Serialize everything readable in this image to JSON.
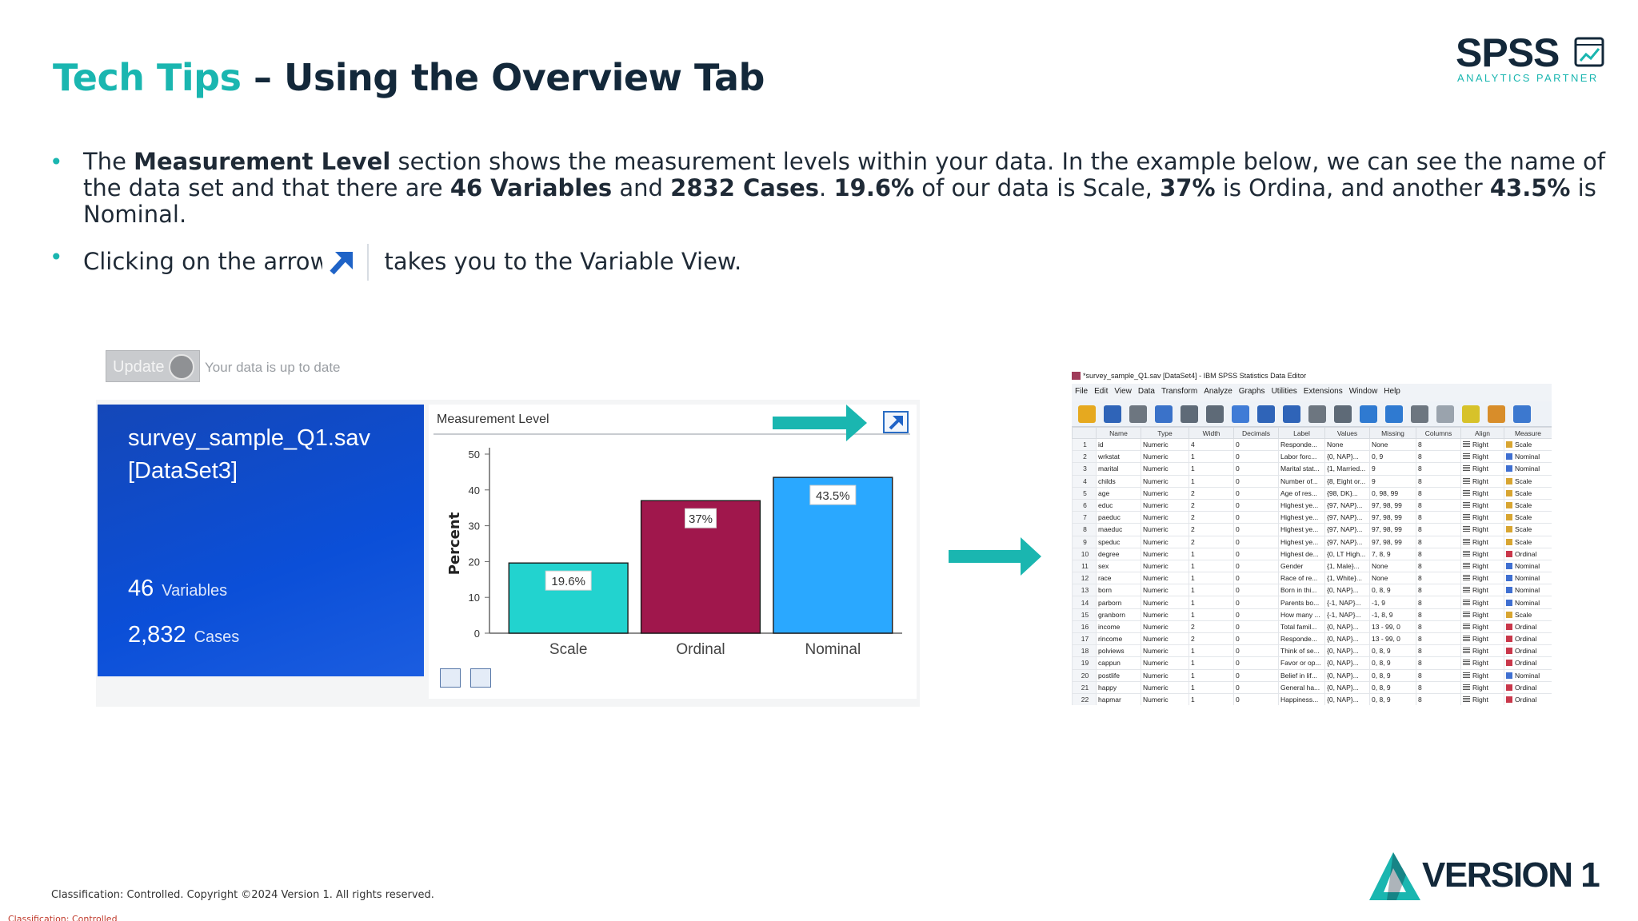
{
  "title": {
    "accent": "Tech Tips",
    "rest": " – Using the Overview Tab"
  },
  "logo": {
    "word": "SPSS",
    "sub": "ANALYTICS PARTNER"
  },
  "bullets": {
    "b1": {
      "t1": "The ",
      "b1": "Measurement Level",
      "t2": " section shows the measurement levels within your data. In the example below, we can see the name of the data set and that there are ",
      "b2": "46 Variables",
      "t3": " and ",
      "b3": "2832 Cases",
      "t4": ". ",
      "b4": "19.6%",
      "t5": " of our data is Scale, ",
      "b5": "37%",
      "t6": " is Ordina, and another ",
      "b6": "43.5%",
      "t7": " is Nominal."
    },
    "b2": {
      "t1": "Clicking on the arrow",
      "t2": " takes you to the Variable View."
    },
    "marker": "•"
  },
  "overview": {
    "update_label": "Update",
    "status": "Your data is up to date",
    "dataset_name": "survey_sample_Q1.sav [DataSet3]",
    "variables": {
      "num": "46",
      "label": "Variables"
    },
    "cases": {
      "num": "2,832",
      "label": "Cases"
    }
  },
  "chart_data": {
    "type": "bar",
    "title": "Measurement Level",
    "categories": [
      "Scale",
      "Ordinal",
      "Nominal"
    ],
    "values": [
      19.6,
      37,
      43.5
    ],
    "data_labels": [
      "19.6%",
      "37%",
      "43.5%"
    ],
    "colors": [
      "#22d3cf",
      "#a0174c",
      "#2aa8ff"
    ],
    "ylabel": "Percent",
    "xlabel": "",
    "ylim": [
      0,
      50
    ],
    "yticks": [
      0,
      10,
      20,
      30,
      40,
      50
    ],
    "grid": false,
    "legend": "none"
  },
  "editor": {
    "title": "*survey_sample_Q1.sav [DataSet4] - IBM SPSS Statistics Data Editor",
    "menu": [
      "File",
      "Edit",
      "View",
      "Data",
      "Transform",
      "Analyze",
      "Graphs",
      "Utilities",
      "Extensions",
      "Window",
      "Help"
    ],
    "columns": [
      "",
      "Name",
      "Type",
      "Width",
      "Decimals",
      "Label",
      "Values",
      "Missing",
      "Columns",
      "Align",
      "Measure"
    ],
    "measure_colors": {
      "Scale": "#d8a531",
      "Nominal": "#3f6fd1",
      "Ordinal": "#c9374a"
    },
    "rows": [
      [
        "1",
        "id",
        "Numeric",
        "4",
        "0",
        "Responde...",
        "None",
        "None",
        "8",
        "Right",
        "Scale"
      ],
      [
        "2",
        "wrkstat",
        "Numeric",
        "1",
        "0",
        "Labor forc...",
        "{0, NAP}...",
        "0, 9",
        "8",
        "Right",
        "Nominal"
      ],
      [
        "3",
        "marital",
        "Numeric",
        "1",
        "0",
        "Marital stat...",
        "{1, Married...",
        "9",
        "8",
        "Right",
        "Nominal"
      ],
      [
        "4",
        "childs",
        "Numeric",
        "1",
        "0",
        "Number of...",
        "{8, Eight or...",
        "9",
        "8",
        "Right",
        "Scale"
      ],
      [
        "5",
        "age",
        "Numeric",
        "2",
        "0",
        "Age of res...",
        "{98, DK}...",
        "0, 98, 99",
        "8",
        "Right",
        "Scale"
      ],
      [
        "6",
        "educ",
        "Numeric",
        "2",
        "0",
        "Highest ye...",
        "{97, NAP}...",
        "97, 98, 99",
        "8",
        "Right",
        "Scale"
      ],
      [
        "7",
        "paeduc",
        "Numeric",
        "2",
        "0",
        "Highest ye...",
        "{97, NAP}...",
        "97, 98, 99",
        "8",
        "Right",
        "Scale"
      ],
      [
        "8",
        "maeduc",
        "Numeric",
        "2",
        "0",
        "Highest ye...",
        "{97, NAP}...",
        "97, 98, 99",
        "8",
        "Right",
        "Scale"
      ],
      [
        "9",
        "speduc",
        "Numeric",
        "2",
        "0",
        "Highest ye...",
        "{97, NAP}...",
        "97, 98, 99",
        "8",
        "Right",
        "Scale"
      ],
      [
        "10",
        "degree",
        "Numeric",
        "1",
        "0",
        "Highest de...",
        "{0, LT High...",
        "7, 8, 9",
        "8",
        "Right",
        "Ordinal"
      ],
      [
        "11",
        "sex",
        "Numeric",
        "1",
        "0",
        "Gender",
        "{1, Male}...",
        "None",
        "8",
        "Right",
        "Nominal"
      ],
      [
        "12",
        "race",
        "Numeric",
        "1",
        "0",
        "Race of re...",
        "{1, White}...",
        "None",
        "8",
        "Right",
        "Nominal"
      ],
      [
        "13",
        "born",
        "Numeric",
        "1",
        "0",
        "Born in thi...",
        "{0, NAP}...",
        "0, 8, 9",
        "8",
        "Right",
        "Nominal"
      ],
      [
        "14",
        "parborn",
        "Numeric",
        "1",
        "0",
        "Parents bo...",
        "{-1, NAP}...",
        "-1, 9",
        "8",
        "Right",
        "Nominal"
      ],
      [
        "15",
        "granborn",
        "Numeric",
        "1",
        "0",
        "How many ...",
        "{-1, NAP}...",
        "-1, 8, 9",
        "8",
        "Right",
        "Scale"
      ],
      [
        "16",
        "income",
        "Numeric",
        "2",
        "0",
        "Total famil...",
        "{0, NAP}...",
        "13 - 99, 0",
        "8",
        "Right",
        "Ordinal"
      ],
      [
        "17",
        "rincome",
        "Numeric",
        "2",
        "0",
        "Responde...",
        "{0, NAP}...",
        "13 - 99, 0",
        "8",
        "Right",
        "Ordinal"
      ],
      [
        "18",
        "polviews",
        "Numeric",
        "1",
        "0",
        "Think of se...",
        "{0, NAP}...",
        "0, 8, 9",
        "8",
        "Right",
        "Ordinal"
      ],
      [
        "19",
        "cappun",
        "Numeric",
        "1",
        "0",
        "Favor or op...",
        "{0, NAP}...",
        "0, 8, 9",
        "8",
        "Right",
        "Ordinal"
      ],
      [
        "20",
        "postlife",
        "Numeric",
        "1",
        "0",
        "Belief in lif...",
        "{0, NAP}...",
        "0, 8, 9",
        "8",
        "Right",
        "Nominal"
      ],
      [
        "21",
        "happy",
        "Numeric",
        "1",
        "0",
        "General ha...",
        "{0, NAP}...",
        "0, 8, 9",
        "8",
        "Right",
        "Ordinal"
      ],
      [
        "22",
        "hapmar",
        "Numeric",
        "1",
        "0",
        "Happiness...",
        "{0, NAP}...",
        "0, 8, 9",
        "8",
        "Right",
        "Ordinal"
      ]
    ]
  },
  "footer": {
    "copyright": "Classification: Controlled. Copyright ©2024 Version 1. All rights reserved.",
    "classification": "Classification: Controlled",
    "version_logo": "VERSION 1"
  },
  "colors": {
    "accent": "#1ab6b0",
    "navy": "#13283a",
    "card_blue": "#0b4fd8"
  }
}
